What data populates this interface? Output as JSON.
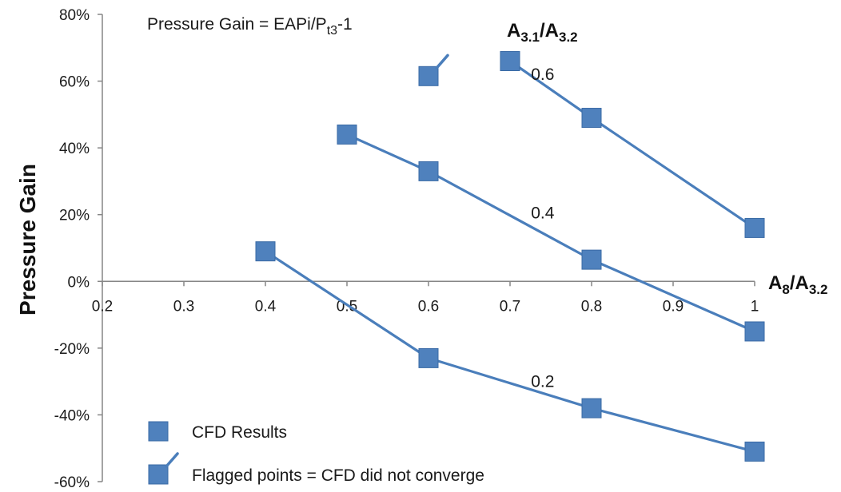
{
  "chart_data": {
    "type": "line",
    "formula": {
      "prefix": "Pressure Gain = EAPi/P",
      "sub": "t3",
      "suffix": "-1"
    },
    "ylabel": "Pressure Gain",
    "xlabel": {
      "base": "A",
      "sub1": "8",
      "mid": "/A",
      "sub2": "3.2"
    },
    "series_title": {
      "base": "A",
      "sub1": "3.1",
      "mid": "/A",
      "sub2": "3.2"
    },
    "xlim": [
      0.2,
      1.0
    ],
    "ylim": [
      -60,
      80
    ],
    "x_ticks": [
      0.2,
      0.3,
      0.4,
      0.5,
      0.6,
      0.7,
      0.8,
      0.9,
      1.0
    ],
    "x_tick_labels": [
      "0.2",
      "0.3",
      "0.4",
      "0.5",
      "0.6",
      "0.7",
      "0.8",
      "0.9",
      "1"
    ],
    "y_ticks": [
      -60,
      -40,
      -20,
      0,
      20,
      40,
      60,
      80
    ],
    "y_tick_labels": [
      "-60%",
      "-40%",
      "-20%",
      "0%",
      "20%",
      "40%",
      "60%",
      "80%"
    ],
    "grid": false,
    "series": [
      {
        "name": "0.2",
        "x": [
          0.4,
          0.6,
          0.8,
          1.0
        ],
        "y": [
          9,
          -23,
          -38,
          -51
        ]
      },
      {
        "name": "0.4",
        "x": [
          0.5,
          0.6,
          0.8,
          1.0
        ],
        "y": [
          44,
          33,
          6.5,
          -15
        ]
      },
      {
        "name": "0.6",
        "x": [
          0.7,
          0.8,
          1.0
        ],
        "y": [
          66,
          49,
          16
        ]
      }
    ],
    "flagged_points": [
      {
        "x": 0.6,
        "y": 61.5
      }
    ],
    "series_label_positions": [
      {
        "text": "0.6",
        "x": 0.74,
        "y": 62
      },
      {
        "text": "0.4",
        "x": 0.74,
        "y": 20.5
      },
      {
        "text": "0.2",
        "x": 0.74,
        "y": -30
      }
    ],
    "legend": {
      "position": "bottom-left",
      "entries": [
        {
          "label": "CFD Results",
          "marker": "square"
        },
        {
          "label": "Flagged points = CFD did not converge",
          "marker": "flagged-square"
        }
      ]
    },
    "colors": {
      "series": "#4a7ebb",
      "marker_fill": "#4f81bd",
      "marker_stroke": "#3a6aa5",
      "axis": "#868686",
      "text": "#1a1a1a"
    }
  }
}
